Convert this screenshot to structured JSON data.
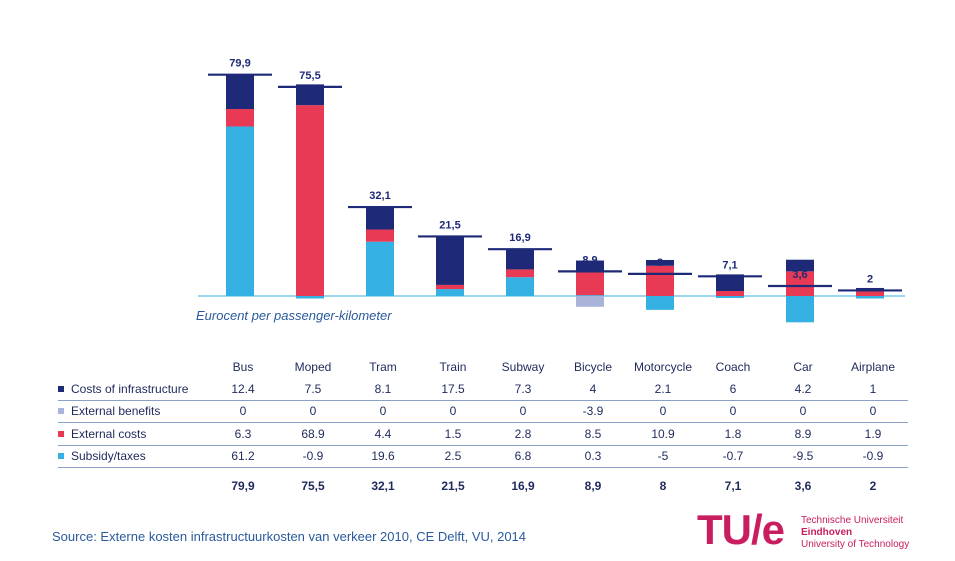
{
  "chart_data": {
    "type": "bar",
    "categories": [
      "Bus",
      "Moped",
      "Tram",
      "Train",
      "Subway",
      "Bicycle",
      "Motorcycle",
      "Coach",
      "Car",
      "Airplane"
    ],
    "series": [
      {
        "name": "Costs of infrastructure",
        "values": [
          12.4,
          7.5,
          8.1,
          17.5,
          7.3,
          4,
          2.1,
          6,
          4.2,
          1
        ],
        "labels": [
          "12.4",
          "7.5",
          "8.1",
          "17.5",
          "7.3",
          "4",
          "2.1",
          "6",
          "4.2",
          "1"
        ],
        "color": "#1e2a78"
      },
      {
        "name": "External benefits",
        "values": [
          0,
          0,
          0,
          0,
          0,
          -3.9,
          0,
          0,
          0,
          0
        ],
        "labels": [
          "0",
          "0",
          "0",
          "0",
          "0",
          "-3.9",
          "0",
          "0",
          "0",
          "0"
        ],
        "color": "#a9b4d8"
      },
      {
        "name": "External costs",
        "values": [
          6.3,
          68.9,
          4.4,
          1.5,
          2.8,
          8.5,
          10.9,
          1.8,
          8.9,
          1.9
        ],
        "labels": [
          "6.3",
          "68.9",
          "4.4",
          "1.5",
          "2.8",
          "8.5",
          "10.9",
          "1.8",
          "8.9",
          "1.9"
        ],
        "color": "#e83a55"
      },
      {
        "name": "Subsidy/taxes",
        "values": [
          61.2,
          -0.9,
          19.6,
          2.5,
          6.8,
          0.3,
          -5,
          -0.7,
          -9.5,
          -0.9
        ],
        "labels": [
          "61.2",
          "-0.9",
          "19.6",
          "2.5",
          "6.8",
          "0.3",
          "-5",
          "-0.7",
          "-9.5",
          "-0.9"
        ],
        "color": "#35b0e2"
      }
    ],
    "totals": [
      79.9,
      75.5,
      32.1,
      21.5,
      16.9,
      8.9,
      8,
      7.1,
      3.6,
      2
    ],
    "total_labels": [
      "79,9",
      "75,5",
      "32,1",
      "21,5",
      "16,9",
      "8,9",
      "8",
      "7,1",
      "3,6",
      "2"
    ],
    "ylabel": "Eurocent per passenger-kilometer",
    "legend": "table-below",
    "grid": false
  },
  "colors": {
    "infrastructure": "#1e2a78",
    "benefits": "#a9b4d8",
    "external": "#e83a55",
    "subsidy": "#35b0e2",
    "accent": "#c81e60"
  },
  "source": "Source: Externe kosten infrastructuurkosten van verkeer 2010, CE Delft, VU, 2014",
  "logo": {
    "mark": "TU/e",
    "line1": "Technische Universiteit",
    "line2": "Eindhoven",
    "line3": "University of Technology"
  }
}
